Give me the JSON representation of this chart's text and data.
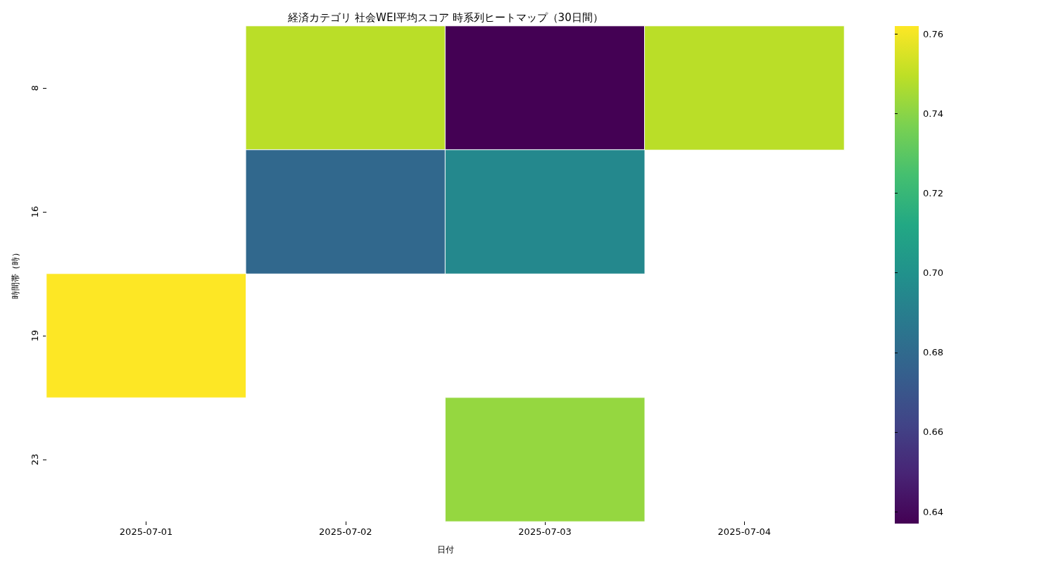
{
  "chart_data": {
    "type": "heatmap",
    "title": "経済カテゴリ 社会WEI平均スコア 時系列ヒートマップ（30日間）",
    "xlabel": "日付",
    "ylabel": "時間帯（時）",
    "categories": [
      "2025-07-01",
      "2025-07-02",
      "2025-07-03",
      "2025-07-04"
    ],
    "y_categories": [
      "8",
      "16",
      "19",
      "23"
    ],
    "cells": [
      [
        null,
        0.749,
        0.637,
        0.749
      ],
      [
        null,
        0.679,
        0.695,
        null
      ],
      [
        0.762,
        null,
        null,
        null
      ],
      [
        null,
        null,
        0.742,
        null
      ]
    ],
    "clim": [
      0.637,
      0.762
    ],
    "cticks": [
      0.64,
      0.66,
      0.68,
      {
        "value": 0.7,
        "label": "0.70"
      },
      0.72,
      0.74,
      0.76
    ]
  }
}
